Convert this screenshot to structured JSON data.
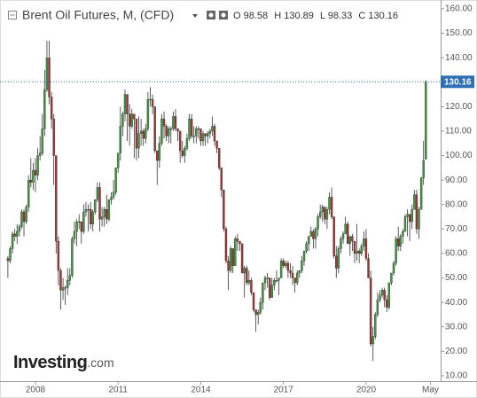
{
  "chart_data": {
    "type": "candlestick",
    "title": "Brent Oil Futures, M, (CFD)",
    "ohlc_labels": [
      "O",
      "H",
      "L",
      "C"
    ],
    "watermark": {
      "brand": "Investing",
      "suffix": ".com"
    },
    "up_color": "#3d9a3d",
    "down_color": "#a83232",
    "price_line_color": "#2f6fb5",
    "categories": [
      null,
      null,
      null,
      null,
      null,
      null,
      null,
      null,
      null,
      null,
      null,
      null,
      "2008",
      null,
      null,
      null,
      null,
      null,
      null,
      null,
      null,
      null,
      null,
      null,
      null,
      null,
      null,
      null,
      null,
      null,
      null,
      null,
      null,
      null,
      null,
      null,
      null,
      null,
      null,
      null,
      null,
      null,
      null,
      null,
      null,
      null,
      null,
      null,
      "2011",
      null,
      null,
      null,
      null,
      null,
      null,
      null,
      null,
      null,
      null,
      null,
      null,
      null,
      null,
      null,
      null,
      null,
      null,
      null,
      null,
      null,
      null,
      null,
      null,
      null,
      null,
      null,
      null,
      null,
      null,
      null,
      null,
      null,
      null,
      null,
      "2014",
      null,
      null,
      null,
      null,
      null,
      null,
      null,
      null,
      null,
      null,
      null,
      null,
      null,
      null,
      null,
      null,
      null,
      null,
      null,
      null,
      null,
      null,
      null,
      null,
      null,
      null,
      null,
      null,
      null,
      null,
      null,
      null,
      null,
      null,
      null,
      "2017",
      null,
      null,
      null,
      null,
      null,
      null,
      null,
      null,
      null,
      null,
      null,
      null,
      null,
      null,
      null,
      null,
      null,
      null,
      null,
      null,
      null,
      null,
      null,
      null,
      null,
      null,
      null,
      null,
      null,
      null,
      null,
      null,
      null,
      null,
      null,
      "2020",
      null,
      null,
      null,
      null,
      null,
      null,
      null,
      null,
      null,
      null,
      null,
      null,
      null,
      null,
      null,
      null,
      null,
      null,
      null,
      null,
      null,
      null,
      null,
      null,
      null,
      null,
      null,
      "May"
    ],
    "values": [
      [
        58,
        59,
        50,
        57
      ],
      [
        57,
        63,
        56,
        62
      ],
      [
        62,
        69,
        60,
        68
      ],
      [
        68,
        70,
        65,
        67
      ],
      [
        67,
        72,
        64,
        69
      ],
      [
        69,
        72,
        67,
        71
      ],
      [
        71,
        78,
        70,
        77
      ],
      [
        77,
        78,
        67,
        73
      ],
      [
        73,
        80,
        72,
        79
      ],
      [
        79,
        92,
        77,
        90
      ],
      [
        90,
        99,
        87,
        89
      ],
      [
        89,
        97,
        86,
        94
      ],
      [
        94,
        99,
        85,
        92
      ],
      [
        92,
        103,
        90,
        100
      ],
      [
        100,
        108,
        98,
        101
      ],
      [
        101,
        117,
        100,
        111
      ],
      [
        111,
        135,
        108,
        127
      ],
      [
        127,
        147,
        126,
        140
      ],
      [
        140,
        147,
        121,
        124
      ],
      [
        124,
        126,
        111,
        115
      ],
      [
        115,
        117,
        88,
        100
      ],
      [
        100,
        100,
        60,
        65
      ],
      [
        65,
        67,
        47,
        53
      ],
      [
        53,
        54,
        37,
        45
      ],
      [
        45,
        50,
        41,
        46
      ],
      [
        46,
        47,
        39,
        46
      ],
      [
        46,
        54,
        43,
        49
      ],
      [
        49,
        54,
        47,
        51
      ],
      [
        51,
        67,
        50,
        66
      ],
      [
        66,
        73,
        64,
        69
      ],
      [
        69,
        74,
        63,
        73
      ],
      [
        73,
        76,
        70,
        73
      ],
      [
        73,
        73,
        64,
        69
      ],
      [
        69,
        80,
        68,
        77
      ],
      [
        77,
        81,
        75,
        78
      ],
      [
        78,
        80,
        69,
        78
      ],
      [
        78,
        81,
        70,
        72
      ],
      [
        72,
        78,
        69,
        77
      ],
      [
        77,
        82,
        76,
        82
      ],
      [
        82,
        89,
        81,
        87
      ],
      [
        87,
        89,
        69,
        74
      ],
      [
        74,
        79,
        71,
        75
      ],
      [
        75,
        79,
        71,
        78
      ],
      [
        78,
        84,
        72,
        74
      ],
      [
        74,
        82,
        73,
        82
      ],
      [
        82,
        85,
        80,
        83
      ],
      [
        83,
        90,
        82,
        85
      ],
      [
        85,
        95,
        84,
        95
      ],
      [
        95,
        101,
        93,
        101
      ],
      [
        101,
        120,
        98,
        112
      ],
      [
        112,
        118,
        108,
        117
      ],
      [
        117,
        127,
        114,
        125
      ],
      [
        125,
        125,
        106,
        117
      ],
      [
        117,
        121,
        104,
        112
      ],
      [
        112,
        119,
        111,
        117
      ],
      [
        117,
        117,
        99,
        115
      ],
      [
        115,
        115,
        98,
        103
      ],
      [
        103,
        116,
        99,
        109
      ],
      [
        109,
        115,
        104,
        110
      ],
      [
        110,
        111,
        104,
        107
      ],
      [
        107,
        113,
        105,
        111
      ],
      [
        111,
        126,
        110,
        123
      ],
      [
        123,
        128,
        120,
        123
      ],
      [
        123,
        125,
        117,
        120
      ],
      [
        120,
        120,
        101,
        102
      ],
      [
        102,
        102,
        88,
        98
      ],
      [
        98,
        108,
        95,
        105
      ],
      [
        105,
        117,
        104,
        115
      ],
      [
        115,
        118,
        107,
        112
      ],
      [
        112,
        113,
        106,
        108
      ],
      [
        108,
        112,
        105,
        111
      ],
      [
        111,
        112,
        105,
        111
      ],
      [
        111,
        118,
        110,
        116
      ],
      [
        116,
        119,
        110,
        111
      ],
      [
        111,
        111,
        106,
        110
      ],
      [
        110,
        110,
        97,
        102
      ],
      [
        102,
        106,
        99,
        100
      ],
      [
        100,
        104,
        97,
        103
      ],
      [
        103,
        109,
        102,
        107
      ],
      [
        107,
        117,
        106,
        115
      ],
      [
        115,
        117,
        107,
        108
      ],
      [
        108,
        112,
        105,
        108
      ],
      [
        108,
        112,
        105,
        111
      ],
      [
        111,
        112,
        107,
        111
      ],
      [
        111,
        111,
        104,
        106
      ],
      [
        106,
        110,
        104,
        109
      ],
      [
        109,
        109,
        104,
        108
      ],
      [
        108,
        110,
        105,
        109
      ],
      [
        109,
        111,
        107,
        110
      ],
      [
        110,
        116,
        108,
        112
      ],
      [
        112,
        113,
        104,
        106
      ],
      [
        106,
        106,
        101,
        103
      ],
      [
        103,
        103,
        94,
        95
      ],
      [
        95,
        95,
        83,
        86
      ],
      [
        86,
        86,
        69,
        70
      ],
      [
        70,
        71,
        56,
        57
      ],
      [
        57,
        59,
        45,
        53
      ],
      [
        53,
        63,
        52,
        62
      ],
      [
        62,
        62,
        52,
        55
      ],
      [
        55,
        67,
        55,
        66
      ],
      [
        66,
        68,
        61,
        65
      ],
      [
        65,
        65,
        61,
        64
      ],
      [
        64,
        64,
        52,
        52
      ],
      [
        52,
        55,
        42,
        54
      ],
      [
        54,
        55,
        47,
        48
      ],
      [
        48,
        53,
        47,
        49
      ],
      [
        49,
        50,
        43,
        44
      ],
      [
        44,
        44,
        36,
        37
      ],
      [
        37,
        37,
        28,
        35
      ],
      [
        35,
        37,
        31,
        36
      ],
      [
        36,
        42,
        35,
        40
      ],
      [
        40,
        48,
        37,
        48
      ],
      [
        48,
        51,
        45,
        50
      ],
      [
        50,
        52,
        46,
        50
      ],
      [
        50,
        50,
        41,
        42
      ],
      [
        42,
        50,
        42,
        47
      ],
      [
        47,
        50,
        45,
        49
      ],
      [
        49,
        53,
        48,
        49
      ],
      [
        49,
        50,
        43,
        50
      ],
      [
        50,
        58,
        50,
        57
      ],
      [
        57,
        58,
        54,
        55
      ],
      [
        55,
        57,
        54,
        56
      ],
      [
        56,
        57,
        50,
        53
      ],
      [
        53,
        56,
        50,
        52
      ],
      [
        52,
        55,
        47,
        50
      ],
      [
        50,
        50,
        44,
        48
      ],
      [
        48,
        53,
        47,
        52
      ],
      [
        52,
        53,
        50,
        53
      ],
      [
        53,
        59,
        52,
        57
      ],
      [
        57,
        61,
        55,
        61
      ],
      [
        61,
        65,
        60,
        64
      ],
      [
        64,
        67,
        61,
        67
      ],
      [
        67,
        71,
        67,
        69
      ],
      [
        69,
        70,
        62,
        66
      ],
      [
        66,
        71,
        62,
        70
      ],
      [
        70,
        76,
        67,
        75
      ],
      [
        75,
        80,
        74,
        77
      ],
      [
        77,
        80,
        73,
        79
      ],
      [
        79,
        79,
        72,
        74
      ],
      [
        74,
        79,
        70,
        78
      ],
      [
        78,
        85,
        76,
        83
      ],
      [
        83,
        87,
        74,
        75
      ],
      [
        75,
        75,
        58,
        59
      ],
      [
        59,
        63,
        50,
        54
      ],
      [
        54,
        63,
        52,
        62
      ],
      [
        62,
        67,
        60,
        66
      ],
      [
        66,
        69,
        64,
        68
      ],
      [
        68,
        75,
        68,
        72
      ],
      [
        72,
        73,
        64,
        64
      ],
      [
        64,
        67,
        59,
        67
      ],
      [
        67,
        68,
        61,
        65
      ],
      [
        65,
        65,
        56,
        60
      ],
      [
        60,
        72,
        57,
        61
      ],
      [
        61,
        62,
        56,
        60
      ],
      [
        60,
        64,
        59,
        63
      ],
      [
        63,
        69,
        61,
        66
      ],
      [
        66,
        70,
        57,
        58
      ],
      [
        58,
        60,
        50,
        50
      ],
      [
        50,
        53,
        22,
        23
      ],
      [
        23,
        30,
        16,
        26
      ],
      [
        26,
        36,
        25,
        35
      ],
      [
        35,
        44,
        34,
        41
      ],
      [
        41,
        45,
        40,
        43
      ],
      [
        43,
        46,
        42,
        45
      ],
      [
        45,
        46,
        38,
        41
      ],
      [
        41,
        43,
        36,
        38
      ],
      [
        38,
        48,
        37,
        48
      ],
      [
        48,
        52,
        47,
        52
      ],
      [
        52,
        57,
        51,
        56
      ],
      [
        56,
        67,
        55,
        66
      ],
      [
        66,
        71,
        61,
        63
      ],
      [
        63,
        68,
        61,
        67
      ],
      [
        67,
        70,
        64,
        69
      ],
      [
        69,
        76,
        69,
        75
      ],
      [
        75,
        78,
        67,
        76
      ],
      [
        76,
        76,
        65,
        73
      ],
      [
        73,
        80,
        70,
        78
      ],
      [
        78,
        86,
        78,
        84
      ],
      [
        84,
        86,
        68,
        70
      ],
      [
        70,
        79,
        66,
        78
      ],
      [
        78,
        91,
        78,
        91
      ],
      [
        91,
        106,
        88,
        98
      ],
      [
        98.58,
        130.89,
        98.33,
        130.16
      ],
      null,
      null
    ],
    "ylim": [
      7.8,
      163.6
    ],
    "yticks": [
      {
        "value": 10,
        "label": "10.00"
      },
      {
        "value": 20,
        "label": "20.00"
      },
      {
        "value": 30,
        "label": "30.00"
      },
      {
        "value": 40,
        "label": "40.00"
      },
      {
        "value": 50,
        "label": "50.00"
      },
      {
        "value": 60,
        "label": "60.00"
      },
      {
        "value": 70,
        "label": "70.00"
      },
      {
        "value": 80,
        "label": "80.00"
      },
      {
        "value": 90,
        "label": "90.00"
      },
      {
        "value": 100,
        "label": "100.00"
      },
      {
        "value": 110,
        "label": "110.00"
      },
      {
        "value": 120,
        "label": "120.00"
      },
      {
        "value": 130,
        "label": "130.00"
      },
      {
        "value": 140,
        "label": "140.00"
      },
      {
        "value": 150,
        "label": "150.00"
      },
      {
        "value": 160,
        "label": "160.00"
      }
    ],
    "grid": false
  }
}
